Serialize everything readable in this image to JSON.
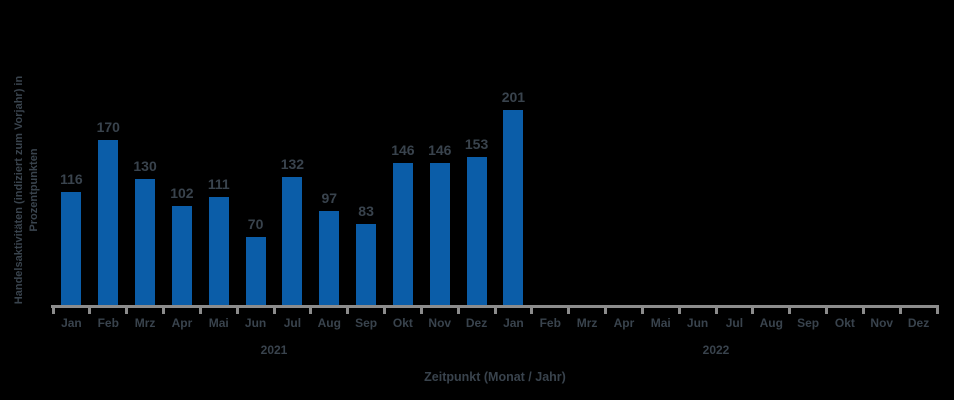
{
  "chart_data": {
    "type": "bar",
    "title": "",
    "xlabel": "Zeitpunkt (Monat / Jahr)",
    "ylabel_lines": [
      "Handelsaktivitäten (indiziert zum Vorjahr) in",
      "Prozentpunkten"
    ],
    "categories": [
      "Jan",
      "Feb",
      "Mrz",
      "Apr",
      "Mai",
      "Jun",
      "Jul",
      "Aug",
      "Sep",
      "Okt",
      "Nov",
      "Dez",
      "Jan",
      "Feb",
      "Mrz",
      "Apr",
      "Mai",
      "Jun",
      "Jul",
      "Aug",
      "Sep",
      "Okt",
      "Nov",
      "Dez"
    ],
    "years": [
      {
        "label": "2021",
        "span": [
          0,
          11
        ]
      },
      {
        "label": "2022",
        "span": [
          12,
          23
        ]
      }
    ],
    "values": [
      116,
      170,
      130,
      102,
      111,
      70,
      132,
      97,
      83,
      146,
      146,
      153,
      201,
      null,
      null,
      null,
      null,
      null,
      null,
      null,
      null,
      null,
      null,
      null
    ],
    "ylim": [
      0,
      220
    ],
    "grid": false,
    "legend": null,
    "data_labels": true,
    "colors": {
      "bar": "#0B5DA8",
      "text": "#39434D",
      "axis": "#8C8C8C",
      "background": "#000000"
    }
  }
}
